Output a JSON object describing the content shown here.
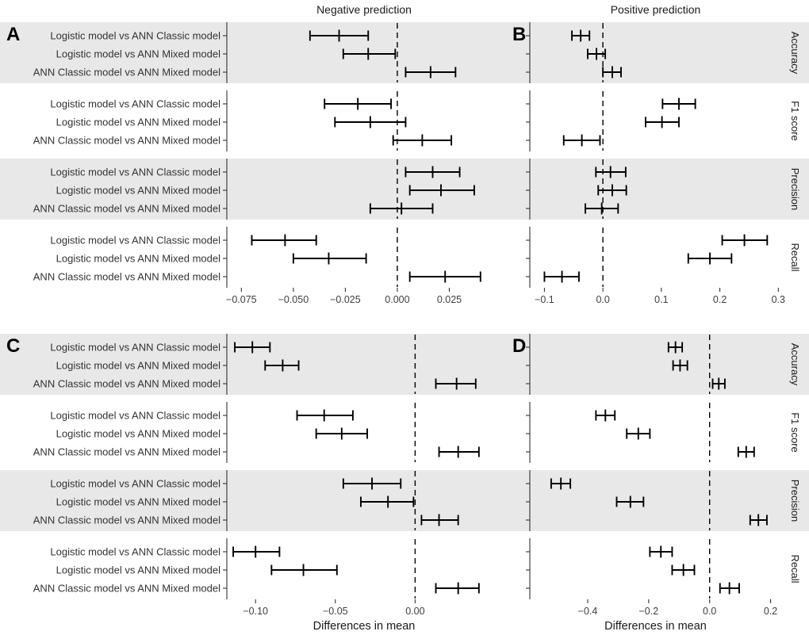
{
  "figure": {
    "column_titles": [
      "Negative prediction",
      "Positive prediction"
    ],
    "x_axis_title": "Differences in mean",
    "panel_letters": [
      "A",
      "B",
      "C",
      "D"
    ],
    "metric_strips": [
      "Accuracy",
      "F1 score",
      "Precision",
      "Recall"
    ],
    "comparisons": [
      "Logistic model vs ANN Classic model",
      "Logistic model vs ANN Mixed model",
      "ANN Classic model vs ANN Mixed model"
    ],
    "colors": {
      "band": "#e8e8e8",
      "line": "#000000",
      "axis": "#333333",
      "text": "#333333",
      "title_text": "#1a1a1a",
      "background": "#ffffff"
    }
  },
  "chart_data": [
    {
      "panel": "A",
      "type": "scatter",
      "style": "horizontal error bars (mean with 95% CI)",
      "column_title": "Negative prediction",
      "x_axis_title": "",
      "xlim": [
        -0.082,
        0.05
      ],
      "xticks": [
        -0.075,
        -0.05,
        -0.025,
        0,
        0.025
      ],
      "xtick_labels": [
        "−0.075",
        "−0.050",
        "−0.025",
        "0.000",
        "0.025"
      ],
      "zero_line": 0,
      "metrics": [
        {
          "name": "Accuracy",
          "shaded": true,
          "rows": [
            {
              "comparison": "Logistic model vs ANN Classic model",
              "lo": -0.042,
              "mean": -0.028,
              "hi": -0.014
            },
            {
              "comparison": "Logistic model vs ANN Mixed model",
              "lo": -0.026,
              "mean": -0.014,
              "hi": -0.001
            },
            {
              "comparison": "ANN Classic model vs ANN Mixed model",
              "lo": 0.004,
              "mean": 0.016,
              "hi": 0.028
            }
          ]
        },
        {
          "name": "F1 score",
          "shaded": false,
          "rows": [
            {
              "comparison": "Logistic model vs ANN Classic model",
              "lo": -0.035,
              "mean": -0.019,
              "hi": -0.003
            },
            {
              "comparison": "Logistic model vs ANN Mixed model",
              "lo": -0.03,
              "mean": -0.013,
              "hi": 0.004
            },
            {
              "comparison": "ANN Classic model vs ANN Mixed model",
              "lo": -0.002,
              "mean": 0.012,
              "hi": 0.026
            }
          ]
        },
        {
          "name": "Precision",
          "shaded": true,
          "rows": [
            {
              "comparison": "Logistic model vs ANN Classic model",
              "lo": 0.004,
              "mean": 0.017,
              "hi": 0.03
            },
            {
              "comparison": "Logistic model vs ANN Mixed model",
              "lo": 0.006,
              "mean": 0.021,
              "hi": 0.037
            },
            {
              "comparison": "ANN Classic model vs ANN Mixed model",
              "lo": -0.013,
              "mean": 0.002,
              "hi": 0.017
            }
          ]
        },
        {
          "name": "Recall",
          "shaded": false,
          "rows": [
            {
              "comparison": "Logistic model vs ANN Classic model",
              "lo": -0.07,
              "mean": -0.054,
              "hi": -0.039
            },
            {
              "comparison": "Logistic model vs ANN Mixed model",
              "lo": -0.05,
              "mean": -0.033,
              "hi": -0.015
            },
            {
              "comparison": "ANN Classic model vs ANN Mixed model",
              "lo": 0.006,
              "mean": 0.023,
              "hi": 0.04
            }
          ]
        }
      ]
    },
    {
      "panel": "B",
      "type": "scatter",
      "style": "horizontal error bars (mean with 95% CI)",
      "column_title": "Positive prediction",
      "x_axis_title": "",
      "xlim": [
        -0.125,
        0.305
      ],
      "xticks": [
        -0.1,
        0,
        0.1,
        0.2,
        0.3
      ],
      "xtick_labels": [
        "−0.1",
        "0.0",
        "0.1",
        "0.2",
        "0.3"
      ],
      "zero_line": 0,
      "metrics": [
        {
          "name": "Accuracy",
          "shaded": true,
          "rows": [
            {
              "comparison": "Logistic model vs ANN Classic model",
              "lo": -0.053,
              "mean": -0.038,
              "hi": -0.023
            },
            {
              "comparison": "Logistic model vs ANN Mixed model",
              "lo": -0.026,
              "mean": -0.011,
              "hi": 0.004
            },
            {
              "comparison": "ANN Classic model vs ANN Mixed model",
              "lo": 0.0,
              "mean": 0.016,
              "hi": 0.031
            }
          ]
        },
        {
          "name": "F1 score",
          "shaded": false,
          "rows": [
            {
              "comparison": "Logistic model vs ANN Classic model",
              "lo": 0.102,
              "mean": 0.13,
              "hi": 0.158
            },
            {
              "comparison": "Logistic model vs ANN Mixed model",
              "lo": 0.073,
              "mean": 0.101,
              "hi": 0.13
            },
            {
              "comparison": "ANN Classic model vs ANN Mixed model",
              "lo": -0.067,
              "mean": -0.036,
              "hi": -0.005
            }
          ]
        },
        {
          "name": "Precision",
          "shaded": true,
          "rows": [
            {
              "comparison": "Logistic model vs ANN Classic model",
              "lo": -0.012,
              "mean": 0.013,
              "hi": 0.039
            },
            {
              "comparison": "Logistic model vs ANN Mixed model",
              "lo": -0.008,
              "mean": 0.016,
              "hi": 0.04
            },
            {
              "comparison": "ANN Classic model vs ANN Mixed model",
              "lo": -0.03,
              "mean": -0.002,
              "hi": 0.026
            }
          ]
        },
        {
          "name": "Recall",
          "shaded": false,
          "rows": [
            {
              "comparison": "Logistic model vs ANN Classic model",
              "lo": 0.204,
              "mean": 0.242,
              "hi": 0.281
            },
            {
              "comparison": "Logistic model vs ANN Mixed model",
              "lo": 0.146,
              "mean": 0.183,
              "hi": 0.22
            },
            {
              "comparison": "ANN Classic model vs ANN Mixed model",
              "lo": -0.1,
              "mean": -0.07,
              "hi": -0.041
            }
          ]
        }
      ]
    },
    {
      "panel": "C",
      "type": "scatter",
      "style": "horizontal error bars (mean with 95% CI)",
      "column_title": "Negative prediction",
      "x_axis_title": "Differences in mean",
      "xlim": [
        -0.118,
        0.054
      ],
      "xticks": [
        -0.1,
        -0.05,
        0
      ],
      "xtick_labels": [
        "−0.10",
        "−0.05",
        "0.00"
      ],
      "zero_line": 0,
      "metrics": [
        {
          "name": "Accuracy",
          "shaded": true,
          "rows": [
            {
              "comparison": "Logistic model vs ANN Classic model",
              "lo": -0.113,
              "mean": -0.102,
              "hi": -0.091
            },
            {
              "comparison": "Logistic model vs ANN Mixed model",
              "lo": -0.094,
              "mean": -0.083,
              "hi": -0.073
            },
            {
              "comparison": "ANN Classic model vs ANN Mixed model",
              "lo": 0.013,
              "mean": 0.026,
              "hi": 0.038
            }
          ]
        },
        {
          "name": "F1 score",
          "shaded": false,
          "rows": [
            {
              "comparison": "Logistic model vs ANN Classic model",
              "lo": -0.074,
              "mean": -0.057,
              "hi": -0.039
            },
            {
              "comparison": "Logistic model vs ANN Mixed model",
              "lo": -0.062,
              "mean": -0.046,
              "hi": -0.03
            },
            {
              "comparison": "ANN Classic model vs ANN Mixed model",
              "lo": 0.015,
              "mean": 0.027,
              "hi": 0.04
            }
          ]
        },
        {
          "name": "Precision",
          "shaded": true,
          "rows": [
            {
              "comparison": "Logistic model vs ANN Classic model",
              "lo": -0.045,
              "mean": -0.027,
              "hi": -0.009
            },
            {
              "comparison": "Logistic model vs ANN Mixed model",
              "lo": -0.034,
              "mean": -0.017,
              "hi": -0.001
            },
            {
              "comparison": "ANN Classic model vs ANN Mixed model",
              "lo": 0.004,
              "mean": 0.015,
              "hi": 0.027
            }
          ]
        },
        {
          "name": "Recall",
          "shaded": false,
          "rows": [
            {
              "comparison": "Logistic model vs ANN Classic model",
              "lo": -0.114,
              "mean": -0.1,
              "hi": -0.085
            },
            {
              "comparison": "Logistic model vs ANN Mixed model",
              "lo": -0.09,
              "mean": -0.07,
              "hi": -0.049
            },
            {
              "comparison": "ANN Classic model vs ANN Mixed model",
              "lo": 0.013,
              "mean": 0.027,
              "hi": 0.04
            }
          ]
        }
      ]
    },
    {
      "panel": "D",
      "type": "scatter",
      "style": "horizontal error bars (mean with 95% CI)",
      "column_title": "Positive prediction",
      "x_axis_title": "Differences in mean",
      "xlim": [
        -0.59,
        0.235
      ],
      "xticks": [
        -0.4,
        -0.2,
        0,
        0.2
      ],
      "xtick_labels": [
        "−0.4",
        "−0.2",
        "0.0",
        "0.2"
      ],
      "zero_line": 0,
      "metrics": [
        {
          "name": "Accuracy",
          "shaded": true,
          "rows": [
            {
              "comparison": "Logistic model vs ANN Classic model",
              "lo": -0.135,
              "mean": -0.112,
              "hi": -0.09
            },
            {
              "comparison": "Logistic model vs ANN Mixed model",
              "lo": -0.12,
              "mean": -0.097,
              "hi": -0.073
            },
            {
              "comparison": "ANN Classic model vs ANN Mixed model",
              "lo": 0.01,
              "mean": 0.03,
              "hi": 0.05
            }
          ]
        },
        {
          "name": "F1 score",
          "shaded": false,
          "rows": [
            {
              "comparison": "Logistic model vs ANN Classic model",
              "lo": -0.373,
              "mean": -0.342,
              "hi": -0.311
            },
            {
              "comparison": "Logistic model vs ANN Mixed model",
              "lo": -0.272,
              "mean": -0.234,
              "hi": -0.196
            },
            {
              "comparison": "ANN Classic model vs ANN Mixed model",
              "lo": 0.094,
              "mean": 0.12,
              "hi": 0.146
            }
          ]
        },
        {
          "name": "Precision",
          "shaded": true,
          "rows": [
            {
              "comparison": "Logistic model vs ANN Classic model",
              "lo": -0.52,
              "mean": -0.488,
              "hi": -0.457
            },
            {
              "comparison": "Logistic model vs ANN Mixed model",
              "lo": -0.305,
              "mean": -0.26,
              "hi": -0.217
            },
            {
              "comparison": "ANN Classic model vs ANN Mixed model",
              "lo": 0.133,
              "mean": 0.16,
              "hi": 0.188
            }
          ]
        },
        {
          "name": "Recall",
          "shaded": false,
          "rows": [
            {
              "comparison": "Logistic model vs ANN Classic model",
              "lo": -0.196,
              "mean": -0.16,
              "hi": -0.123
            },
            {
              "comparison": "Logistic model vs ANN Mixed model",
              "lo": -0.123,
              "mean": -0.086,
              "hi": -0.05
            },
            {
              "comparison": "ANN Classic model vs ANN Mixed model",
              "lo": 0.034,
              "mean": 0.065,
              "hi": 0.097
            }
          ]
        }
      ]
    }
  ]
}
